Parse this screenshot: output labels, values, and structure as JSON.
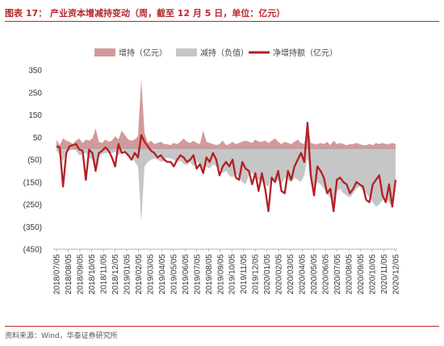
{
  "header": {
    "title": "图表 17： 产业资本增减持变动（周，截至 12 月 5 日，单位：亿元）"
  },
  "footer": {
    "source": "资料来源：Wind，华泰证券研究所"
  },
  "colors": {
    "increase": "#d39a9b",
    "decrease": "#c6c6c6",
    "net": "#b51f24",
    "accent": "#b8282b"
  },
  "chart_data": {
    "type": "area",
    "legend": [
      "增持（亿元）",
      "减持（负值）",
      "净增持额（亿元）"
    ],
    "legend_position": "top",
    "ylim": [
      -450,
      350
    ],
    "yticks": [
      350,
      250,
      150,
      50,
      -50,
      -150,
      -250,
      -350,
      -450
    ],
    "ytick_labels": [
      "350",
      "250",
      "150",
      "50",
      "(50)",
      "(150)",
      "(250)",
      "(350)",
      "(450)"
    ],
    "xtick_labels": [
      "2018/07/05",
      "2018/08/05",
      "2018/09/05",
      "2018/10/05",
      "2018/11/05",
      "2018/12/05",
      "2019/01/05",
      "2019/02/05",
      "2019/03/05",
      "2019/04/05",
      "2019/05/05",
      "2019/06/05",
      "2019/07/05",
      "2019/08/05",
      "2019/09/05",
      "2019/10/05",
      "2019/11/05",
      "2019/12/05",
      "2020/01/05",
      "2020/02/05",
      "2020/03/05",
      "2020/04/05",
      "2020/05/05",
      "2020/06/05",
      "2020/07/05",
      "2020/08/05",
      "2020/09/05",
      "2020/10/05",
      "2020/11/05",
      "2020/12/05"
    ],
    "x_start": "2018/07/05",
    "x_end": "2020/12/05",
    "grid": false,
    "series": [
      {
        "name": "增持（亿元）",
        "type": "area",
        "values": [
          40,
          15,
          45,
          35,
          30,
          20,
          35,
          45,
          25,
          40,
          35,
          45,
          90,
          30,
          25,
          40,
          30,
          35,
          55,
          40,
          80,
          60,
          40,
          35,
          40,
          55,
          310,
          70,
          25,
          35,
          20,
          25,
          30,
          20,
          20,
          15,
          25,
          20,
          30,
          45,
          30,
          25,
          35,
          25,
          20,
          80,
          30,
          25,
          20,
          15,
          20,
          35,
          15,
          20,
          30,
          20,
          25,
          30,
          35,
          30,
          25,
          40,
          30,
          30,
          35,
          25,
          35,
          45,
          30,
          20,
          30,
          25,
          20,
          30,
          40,
          25,
          20,
          115,
          25,
          20,
          20,
          25,
          20,
          30,
          15,
          35,
          20,
          25,
          20,
          15,
          20,
          20,
          25,
          20,
          15,
          15,
          20,
          15,
          25,
          20,
          25,
          20,
          20,
          25,
          20
        ]
      },
      {
        "name": "减持（负值）",
        "type": "area",
        "values": [
          -10,
          -30,
          -60,
          -15,
          -10,
          -5,
          -10,
          -30,
          -25,
          -20,
          -40,
          -50,
          -80,
          -30,
          -25,
          -20,
          -20,
          -20,
          -15,
          -30,
          -10,
          -15,
          -30,
          -40,
          -60,
          -80,
          -330,
          -80,
          -60,
          -50,
          -45,
          -50,
          -60,
          -55,
          -40,
          -45,
          -50,
          -60,
          -55,
          -70,
          -75,
          -60,
          -80,
          -60,
          -70,
          -100,
          -80,
          -90,
          -70,
          -80,
          -90,
          -110,
          -100,
          -120,
          -130,
          -110,
          -130,
          -150,
          -160,
          -120,
          -110,
          -130,
          -140,
          -150,
          -160,
          -170,
          -130,
          -150,
          -140,
          -160,
          -130,
          -140,
          -150,
          -130,
          -140,
          -150,
          -120,
          -40,
          -160,
          -170,
          -150,
          -160,
          -180,
          -200,
          -220,
          -260,
          -190,
          -180,
          -200,
          -210,
          -220,
          -200,
          -180,
          -170,
          -190,
          -200,
          -220,
          -240,
          -260,
          -250,
          -230,
          -220,
          -240,
          -260,
          -150
        ]
      },
      {
        "name": "净增持额（亿元）",
        "type": "line",
        "values": [
          10,
          5,
          -170,
          -20,
          10,
          15,
          20,
          -5,
          -10,
          -140,
          -5,
          -20,
          -100,
          -20,
          -10,
          5,
          -10,
          -40,
          -80,
          20,
          -20,
          -15,
          -30,
          -50,
          -20,
          -40,
          60,
          30,
          10,
          -10,
          -20,
          -40,
          -30,
          -50,
          -60,
          -60,
          -80,
          -50,
          -30,
          -40,
          -60,
          -50,
          -30,
          -90,
          -70,
          -110,
          -40,
          -60,
          -20,
          -50,
          -120,
          -80,
          -60,
          -80,
          -50,
          -130,
          -140,
          -60,
          -90,
          -100,
          -160,
          -110,
          -190,
          -110,
          -180,
          -280,
          -130,
          -150,
          -100,
          -190,
          -200,
          -100,
          -140,
          -80,
          -50,
          -20,
          -60,
          115,
          -120,
          -210,
          -80,
          -100,
          -130,
          -200,
          -180,
          -280,
          -140,
          -130,
          -150,
          -160,
          -200,
          -180,
          -150,
          -160,
          -170,
          -230,
          -240,
          -160,
          -140,
          -120,
          -210,
          -240,
          -160,
          -260,
          -140
        ]
      }
    ]
  }
}
